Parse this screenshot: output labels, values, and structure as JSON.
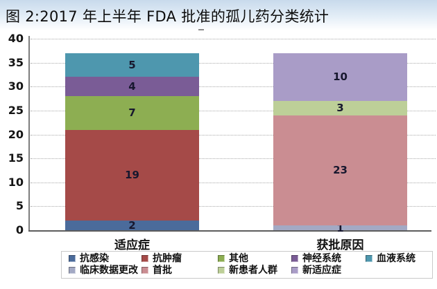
{
  "title": "图 2:2017 年上半年 FDA 批准的孤儿药分类统计",
  "chart_data": {
    "type": "bar",
    "stacked": true,
    "title": "图 2:2017 年上半年 FDA 批准的孤儿药分类统计",
    "grid": true,
    "legend_position": "bottom",
    "y_axis": {
      "min": 0,
      "max": 40,
      "step": 5,
      "tick_labels": [
        "0",
        "5",
        "10",
        "15",
        "20",
        "25",
        "30",
        "35",
        "40"
      ]
    },
    "categories": [
      "适应症",
      "获批原因"
    ],
    "bars": [
      {
        "category": "适应症",
        "total": 37,
        "segments": [
          {
            "label": "抗感染",
            "value": 2,
            "color": "#4b6b9b"
          },
          {
            "label": "抗肿瘤",
            "value": 19,
            "color": "#a54a48"
          },
          {
            "label": "其他",
            "value": 7,
            "color": "#8dae52"
          },
          {
            "label": "神经系统",
            "value": 4,
            "color": "#7a5c96"
          },
          {
            "label": "血液系统",
            "value": 5,
            "color": "#4e97ae"
          }
        ]
      },
      {
        "category": "获批原因",
        "total": 37,
        "segments": [
          {
            "label": "临床数据更改",
            "value": 1,
            "color": "#a3a9c4"
          },
          {
            "label": "首批",
            "value": 23,
            "color": "#ca8d92"
          },
          {
            "label": "新患者人群",
            "value": 3,
            "color": "#bdcf98"
          },
          {
            "label": "新适应症",
            "value": 10,
            "color": "#a99cc7"
          }
        ]
      }
    ],
    "legend": {
      "rows": [
        [
          {
            "label": "抗感染",
            "color": "#4b6b9b"
          },
          {
            "label": "抗肿瘤",
            "color": "#a54a48"
          },
          {
            "label": "其他",
            "color": "#8dae52"
          },
          {
            "label": "神经系统",
            "color": "#7a5c96"
          },
          {
            "label": "血液系统",
            "color": "#4e97ae"
          }
        ],
        [
          {
            "label": "临床数据更改",
            "color": "#a3a9c4"
          },
          {
            "label": "首批",
            "color": "#ca8d92"
          },
          {
            "label": "新患者人群",
            "color": "#bdcf98"
          },
          {
            "label": "新适应症",
            "color": "#a99cc7"
          }
        ]
      ]
    }
  }
}
